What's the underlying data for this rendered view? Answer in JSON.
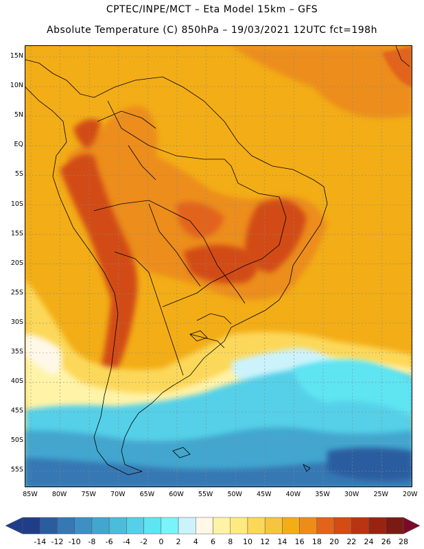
{
  "header": {
    "line1": "CPTEC/INPE/MCT –  Eta Model 15km – GFS",
    "line2": "Absolute Temperature (C) 850hPa – 19/03/2021 12UTC fct=198h"
  },
  "map": {
    "lat_labels": [
      "15N",
      "10N",
      "5N",
      "EQ",
      "5S",
      "10S",
      "15S",
      "20S",
      "25S",
      "30S",
      "35S",
      "40S",
      "45S",
      "50S",
      "55S"
    ],
    "lon_labels": [
      "85W",
      "80W",
      "75W",
      "70W",
      "65W",
      "60W",
      "55W",
      "50W",
      "45W",
      "40W",
      "35W",
      "30W",
      "25W",
      "20W"
    ]
  },
  "colorbar": {
    "labels": [
      "-14",
      "-12",
      "-10",
      "-8",
      "-6",
      "-4",
      "-2",
      "0",
      "2",
      "4",
      "6",
      "8",
      "10",
      "12",
      "14",
      "16",
      "18",
      "20",
      "22",
      "24",
      "26",
      "28"
    ],
    "colors": [
      "#203d8a",
      "#2a5da0",
      "#3578b4",
      "#3e8fc4",
      "#43a6cf",
      "#4cbcdc",
      "#55d0e8",
      "#5fe4f2",
      "#79f4fa",
      "#ccf3fb",
      "#fff8e8",
      "#fff3a8",
      "#ffea80",
      "#fcd85a",
      "#f7c440",
      "#f3ad16",
      "#ec8d1a",
      "#e2641a",
      "#d24c14",
      "#b93410",
      "#982410",
      "#7a1a14"
    ],
    "low_end_color": "#203d8a",
    "high_end_color": "#7a0a2a"
  }
}
